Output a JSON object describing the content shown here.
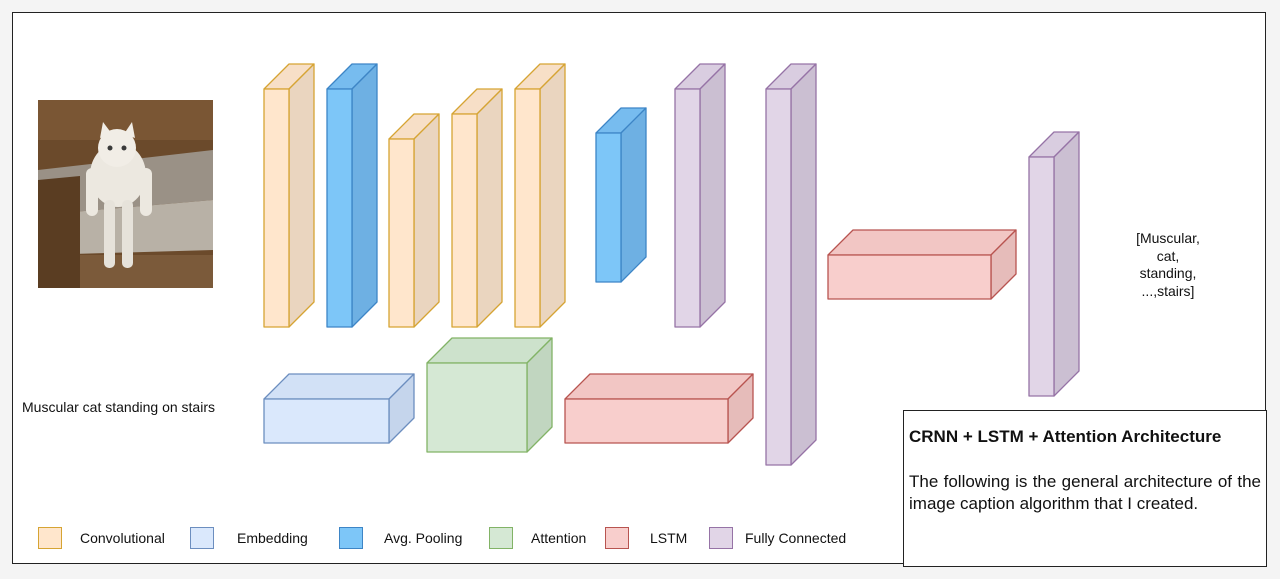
{
  "colors": {
    "convolutional": {
      "face": "#ffe6cc",
      "side": "#ead5bf",
      "top": "#f7dfc7",
      "stroke": "#d6a433"
    },
    "embedding": {
      "face": "#dae8fc",
      "side": "#c5d5ec",
      "top": "#d2e1f6",
      "stroke": "#6c8ebf"
    },
    "avg_pooling": {
      "face": "#7dc6f8",
      "side": "#6eb0e3",
      "top": "#77bcef",
      "stroke": "#3d85c6"
    },
    "attention": {
      "face": "#d5e8d4",
      "side": "#c1d6c0",
      "top": "#cde2cc",
      "stroke": "#82b366"
    },
    "lstm": {
      "face": "#f8cecc",
      "side": "#e6bcba",
      "top": "#f2c6c4",
      "stroke": "#b85450"
    },
    "fully_connected": {
      "face": "#e1d5e7",
      "side": "#cbbfd2",
      "top": "#d9cde0",
      "stroke": "#9673a6"
    }
  },
  "input": {
    "image_alt": "muscular cat standing on stairs photo",
    "caption": "Muscular cat standing on stairs"
  },
  "output": {
    "lines": [
      "[Muscular,",
      "cat,",
      "standing,",
      "...,stairs]"
    ]
  },
  "info": {
    "title": "CRNN + LSTM + Attention Architecture",
    "description": "The following is the general architecture of the image caption algorithm that I created."
  },
  "legend": [
    {
      "key": "convolutional",
      "label": "Convolutional"
    },
    {
      "key": "embedding",
      "label": "Embedding"
    },
    {
      "key": "avg_pooling",
      "label": "Avg. Pooling"
    },
    {
      "key": "attention",
      "label": "Attention"
    },
    {
      "key": "lstm",
      "label": "LSTM"
    },
    {
      "key": "fully_connected",
      "label": "Fully Connected"
    }
  ],
  "blocks": [
    {
      "name": "conv-block-1",
      "type": "convolutional"
    },
    {
      "name": "avg-pool-block-1",
      "type": "avg_pooling"
    },
    {
      "name": "conv-block-2",
      "type": "convolutional"
    },
    {
      "name": "conv-block-3",
      "type": "convolutional"
    },
    {
      "name": "conv-block-4",
      "type": "convolutional"
    },
    {
      "name": "avg-pool-block-2",
      "type": "avg_pooling"
    },
    {
      "name": "fc-block-1",
      "type": "fully_connected"
    },
    {
      "name": "fc-block-2",
      "type": "fully_connected"
    },
    {
      "name": "lstm-block-2",
      "type": "lstm"
    },
    {
      "name": "fc-block-3",
      "type": "fully_connected"
    },
    {
      "name": "embedding-block",
      "type": "embedding"
    },
    {
      "name": "attention-block",
      "type": "attention"
    },
    {
      "name": "lstm-block-1",
      "type": "lstm"
    }
  ]
}
